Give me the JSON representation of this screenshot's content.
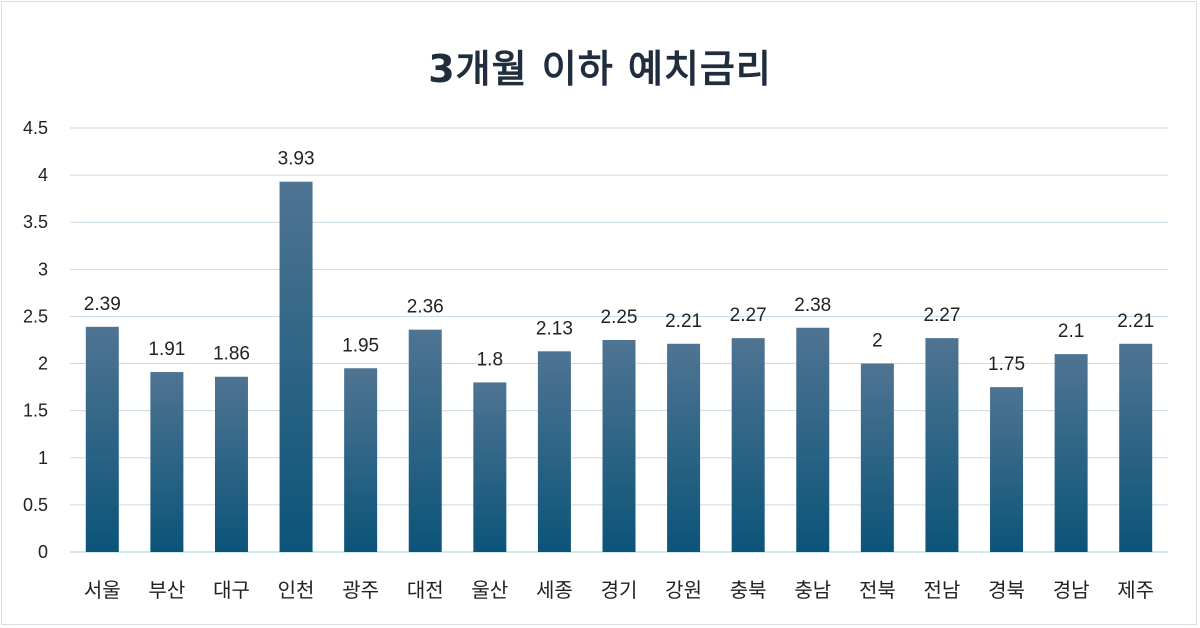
{
  "chart_data": {
    "type": "bar",
    "title": "3개월 이하 예치금리",
    "categories": [
      "서울",
      "부산",
      "대구",
      "인천",
      "광주",
      "대전",
      "울산",
      "세종",
      "경기",
      "강원",
      "충북",
      "충남",
      "전북",
      "전남",
      "경북",
      "경남",
      "제주"
    ],
    "values": [
      2.39,
      1.91,
      1.86,
      3.93,
      1.95,
      2.36,
      1.8,
      2.13,
      2.25,
      2.21,
      2.27,
      2.38,
      2,
      2.27,
      1.75,
      2.1,
      2.21
    ],
    "data_labels": [
      "2.39",
      "1.91",
      "1.86",
      "3.93",
      "1.95",
      "2.36",
      "1.8",
      "2.13",
      "2.25",
      "2.21",
      "2.27",
      "2.38",
      "2",
      "2.27",
      "1.75",
      "2.1",
      "2.21"
    ],
    "ylim": [
      0,
      4.5
    ],
    "y_ticks": [
      0,
      0.5,
      1,
      1.5,
      2,
      2.5,
      3,
      3.5,
      4,
      4.5
    ],
    "y_tick_labels": [
      "0",
      "0.5",
      "1",
      "1.5",
      "2",
      "2.5",
      "3",
      "3.5",
      "4",
      "4.5"
    ],
    "xlabel": "",
    "ylabel": "",
    "grid": true,
    "legend": "none",
    "colors": {
      "bar_top": "#4f7492",
      "bar_bottom": "#0b5479",
      "grid": "#c9dbe6",
      "title": "#1f2d3d"
    }
  }
}
